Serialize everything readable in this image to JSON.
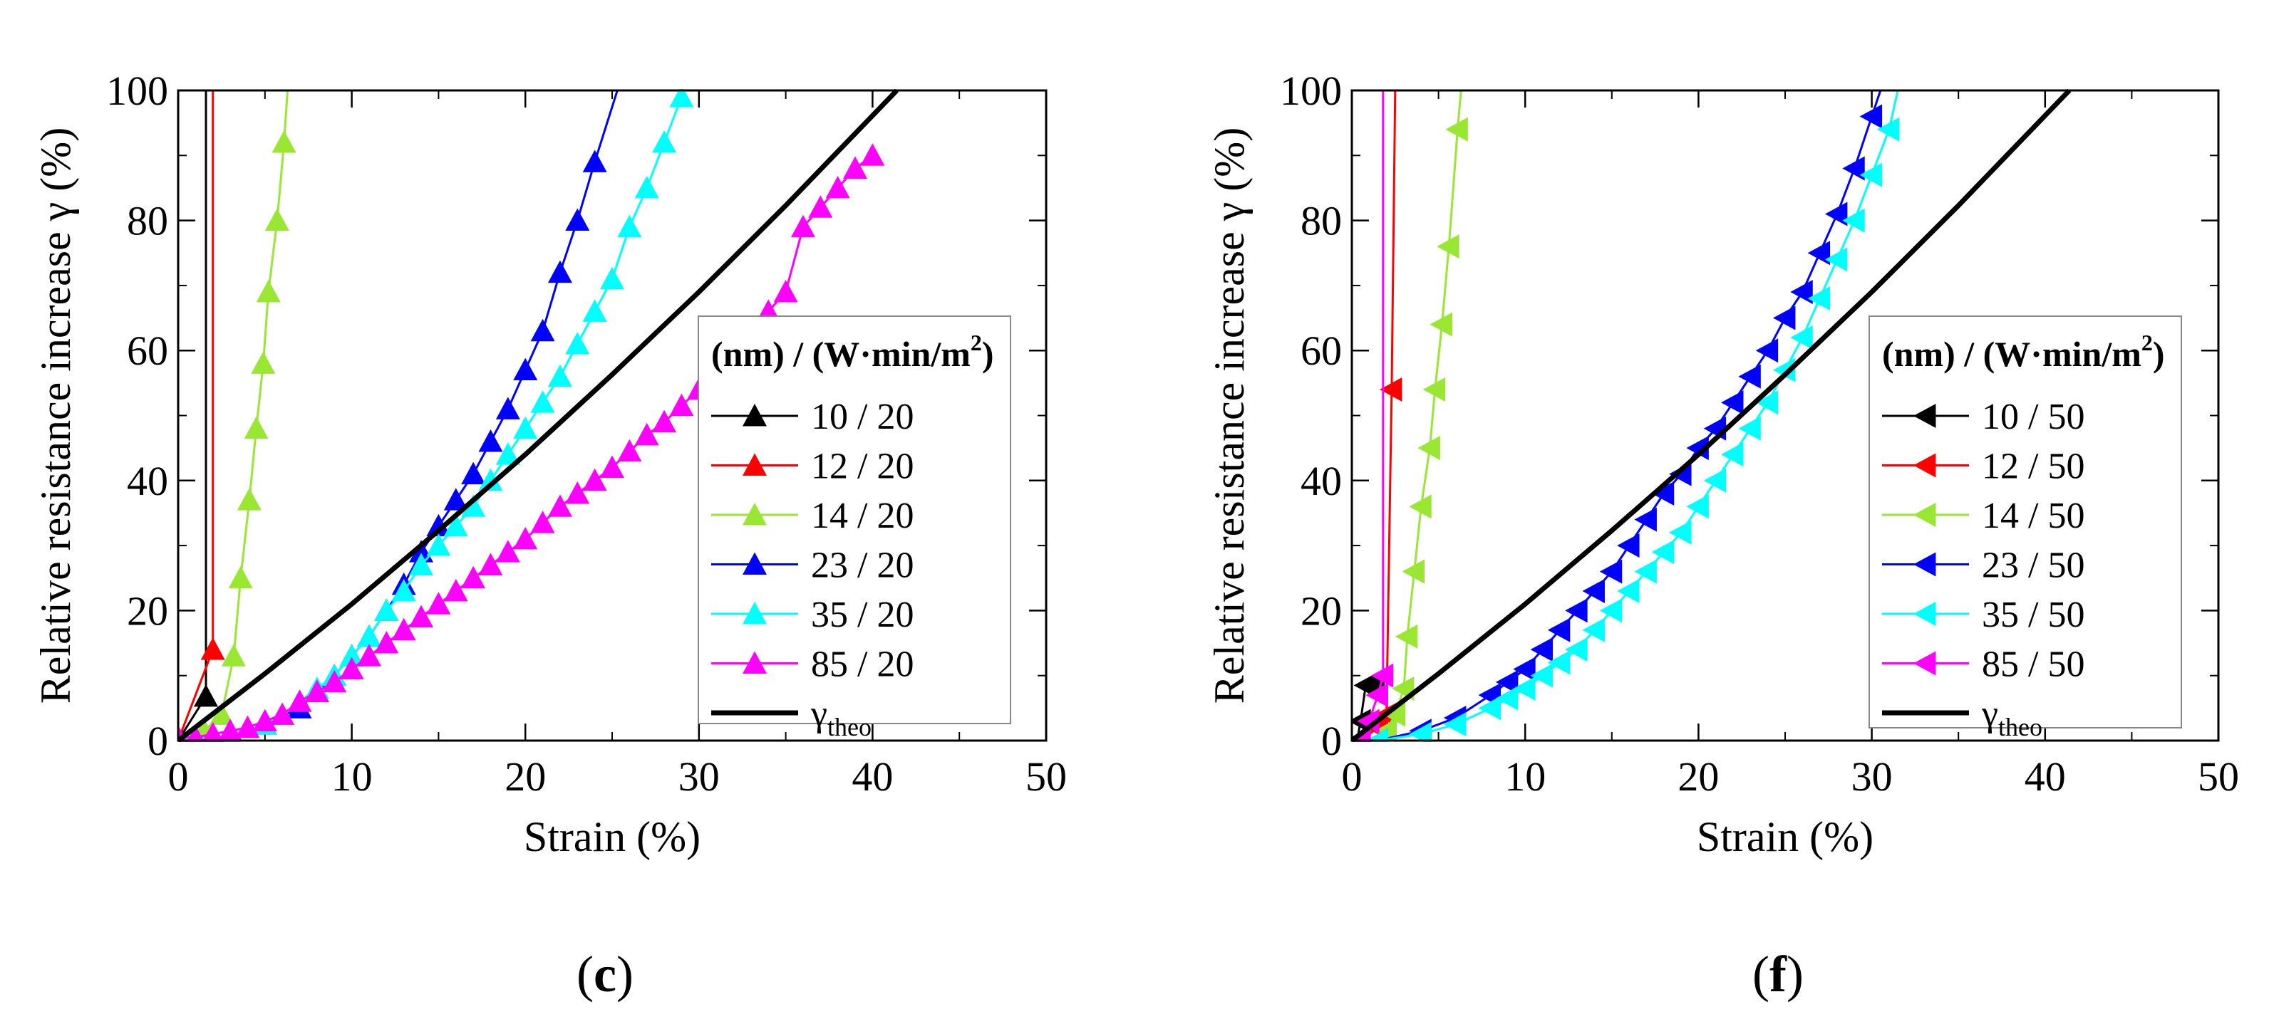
{
  "chart_data": [
    {
      "panel_label": "(c)",
      "label_letter": "c",
      "type": "line",
      "marker": "triangle-up",
      "xlabel": "Strain  (%)",
      "ylabel": "Relative resistance increase  γ (%)",
      "xlim": [
        0,
        50
      ],
      "ylim": [
        0,
        100
      ],
      "xticks": [
        0,
        10,
        20,
        30,
        40,
        50
      ],
      "yticks": [
        0,
        20,
        40,
        60,
        80,
        100
      ],
      "legend": {
        "title": "(nm) / (W·min/m²)",
        "title_base": "(nm) / (W·min/m",
        "title_sup": "2",
        "title_end": ")",
        "position": "center-right"
      },
      "series": [
        {
          "name": "10 / 20",
          "color": "#000000",
          "points": [
            [
              0,
              0
            ],
            [
              1.6,
              6.8
            ],
            [
              1.6,
              100
            ]
          ]
        },
        {
          "name": "12 / 20",
          "color": "#ff0000",
          "points": [
            [
              0,
              0
            ],
            [
              2.0,
              14
            ],
            [
              2.0,
              100
            ]
          ]
        },
        {
          "name": "14 / 20",
          "color": "#99e633",
          "points": [
            [
              0,
              0
            ],
            [
              1.5,
              1.5
            ],
            [
              2.5,
              4
            ],
            [
              3.2,
              13
            ],
            [
              3.6,
              25
            ],
            [
              4.1,
              37
            ],
            [
              4.5,
              48
            ],
            [
              4.9,
              58
            ],
            [
              5.2,
              69
            ],
            [
              5.7,
              80
            ],
            [
              6.1,
              92
            ],
            [
              6.3,
              100
            ]
          ]
        },
        {
          "name": "23 / 20",
          "color": "#0000ff",
          "points": [
            [
              0,
              0
            ],
            [
              3.0,
              0.8
            ],
            [
              5.0,
              2.5
            ],
            [
              7.0,
              5
            ],
            [
              8.0,
              7.5
            ],
            [
              9.0,
              10
            ],
            [
              10.0,
              13
            ],
            [
              11.0,
              16
            ],
            [
              12.0,
              20
            ],
            [
              13.0,
              24
            ],
            [
              14.0,
              29
            ],
            [
              15.0,
              33
            ],
            [
              16.0,
              37
            ],
            [
              17.0,
              41
            ],
            [
              18.0,
              46
            ],
            [
              19.0,
              51
            ],
            [
              20.0,
              57
            ],
            [
              21.0,
              63
            ],
            [
              22.0,
              72
            ],
            [
              23.0,
              80
            ],
            [
              24.0,
              89
            ],
            [
              25.3,
              100
            ]
          ]
        },
        {
          "name": "35 / 20",
          "color": "#00ffff",
          "points": [
            [
              0,
              0
            ],
            [
              3.0,
              0.8
            ],
            [
              5.0,
              2.5
            ],
            [
              6.0,
              4
            ],
            [
              7.0,
              6
            ],
            [
              8.0,
              8
            ],
            [
              9.0,
              10
            ],
            [
              10.0,
              13
            ],
            [
              11.0,
              16
            ],
            [
              12.0,
              20
            ],
            [
              13.0,
              23
            ],
            [
              14.0,
              27
            ],
            [
              15.0,
              30
            ],
            [
              16.0,
              33
            ],
            [
              17.0,
              36
            ],
            [
              18.0,
              40
            ],
            [
              19.0,
              44
            ],
            [
              20.0,
              48
            ],
            [
              21.0,
              52
            ],
            [
              22.0,
              56
            ],
            [
              23.0,
              61
            ],
            [
              24.0,
              66
            ],
            [
              25.0,
              71
            ],
            [
              26.0,
              79
            ],
            [
              27.0,
              85
            ],
            [
              28.0,
              92
            ],
            [
              29.0,
              99
            ]
          ]
        },
        {
          "name": "85 / 20",
          "color": "#ff00ff",
          "points": [
            [
              0,
              0.5
            ],
            [
              1,
              0.5
            ],
            [
              2,
              1
            ],
            [
              3,
              1.5
            ],
            [
              4,
              2
            ],
            [
              5,
              3
            ],
            [
              6,
              4
            ],
            [
              7,
              6
            ],
            [
              8,
              7.5
            ],
            [
              9,
              9
            ],
            [
              10,
              11
            ],
            [
              11,
              13
            ],
            [
              12,
              15
            ],
            [
              13,
              17
            ],
            [
              14,
              19
            ],
            [
              15,
              21
            ],
            [
              16,
              23
            ],
            [
              17,
              25
            ],
            [
              18,
              27
            ],
            [
              19,
              29
            ],
            [
              20,
              31
            ],
            [
              21,
              33.5
            ],
            [
              22,
              36
            ],
            [
              23,
              38
            ],
            [
              24,
              40
            ],
            [
              25,
              42
            ],
            [
              26,
              44.5
            ],
            [
              27,
              47
            ],
            [
              28,
              49
            ],
            [
              29,
              51.5
            ],
            [
              30,
              54
            ],
            [
              31,
              57
            ],
            [
              32,
              60
            ],
            [
              33,
              63
            ],
            [
              34,
              66
            ],
            [
              35,
              69
            ],
            [
              36,
              79
            ],
            [
              37,
              82
            ],
            [
              38,
              85
            ],
            [
              39,
              88
            ],
            [
              40,
              90
            ]
          ]
        },
        {
          "name": "γtheo",
          "label_base": "γ",
          "label_sub": "theo",
          "color": "#000000",
          "theo": true,
          "points": [
            [
              0,
              0
            ],
            [
              5,
              10.3
            ],
            [
              10,
              21.0
            ],
            [
              15,
              32.3
            ],
            [
              20,
              44.0
            ],
            [
              25,
              56.3
            ],
            [
              30,
              69.0
            ],
            [
              35,
              82.3
            ],
            [
              41.4,
              100
            ]
          ]
        }
      ]
    },
    {
      "panel_label": "(f)",
      "label_letter": "f",
      "type": "line",
      "marker": "triangle-left",
      "xlabel": "Strain  (%)",
      "ylabel": "Relative resistance increase  γ (%)",
      "xlim": [
        0,
        50
      ],
      "ylim": [
        0,
        100
      ],
      "xticks": [
        0,
        10,
        20,
        30,
        40,
        50
      ],
      "yticks": [
        0,
        20,
        40,
        60,
        80,
        100
      ],
      "legend": {
        "title": "(nm) / (W·min/m²)",
        "title_base": "(nm) / (W·min/m",
        "title_sup": "2",
        "title_end": ")",
        "position": "center-right"
      },
      "series": [
        {
          "name": "10 / 50",
          "color": "#000000",
          "points": [
            [
              0.3,
              0
            ],
            [
              0.5,
              3
            ],
            [
              0.8,
              8.5
            ],
            [
              1.3,
              8.5
            ]
          ]
        },
        {
          "name": "12 / 50",
          "color": "#ff0000",
          "points": [
            [
              0.5,
              0
            ],
            [
              1.5,
              2
            ],
            [
              2.0,
              4
            ],
            [
              2.3,
              54
            ],
            [
              2.5,
              100
            ]
          ]
        },
        {
          "name": "14 / 50",
          "color": "#99e633",
          "points": [
            [
              1.5,
              0
            ],
            [
              2.0,
              1.5
            ],
            [
              2.5,
              4
            ],
            [
              3.0,
              8
            ],
            [
              3.2,
              16
            ],
            [
              3.6,
              26
            ],
            [
              4.0,
              36
            ],
            [
              4.5,
              45
            ],
            [
              4.8,
              54
            ],
            [
              5.2,
              64
            ],
            [
              5.6,
              76
            ],
            [
              6.1,
              94
            ],
            [
              6.3,
              100
            ]
          ]
        },
        {
          "name": "23 / 50",
          "color": "#0000ff",
          "points": [
            [
              1.5,
              0
            ],
            [
              4,
              1.5
            ],
            [
              6,
              3.5
            ],
            [
              8,
              7
            ],
            [
              9,
              9
            ],
            [
              10,
              11
            ],
            [
              11,
              14
            ],
            [
              12,
              17
            ],
            [
              13,
              20
            ],
            [
              14,
              23
            ],
            [
              15,
              26
            ],
            [
              16,
              30
            ],
            [
              17,
              34
            ],
            [
              18,
              38
            ],
            [
              19,
              41
            ],
            [
              20,
              45
            ],
            [
              21,
              48
            ],
            [
              22,
              52
            ],
            [
              23,
              56
            ],
            [
              24,
              60
            ],
            [
              25,
              65
            ],
            [
              26,
              69
            ],
            [
              27,
              75
            ],
            [
              28,
              81
            ],
            [
              29,
              88
            ],
            [
              30,
              96
            ],
            [
              30.5,
              100
            ]
          ]
        },
        {
          "name": "35 / 50",
          "color": "#00ffff",
          "points": [
            [
              1.5,
              0
            ],
            [
              4,
              1
            ],
            [
              6,
              2.5
            ],
            [
              8,
              5
            ],
            [
              9,
              6.5
            ],
            [
              10,
              8
            ],
            [
              11,
              10
            ],
            [
              12,
              12
            ],
            [
              13,
              14
            ],
            [
              14,
              17
            ],
            [
              15,
              20
            ],
            [
              16,
              23
            ],
            [
              17,
              26
            ],
            [
              18,
              29
            ],
            [
              19,
              32
            ],
            [
              20,
              36
            ],
            [
              21,
              40
            ],
            [
              22,
              44
            ],
            [
              23,
              48
            ],
            [
              24,
              52
            ],
            [
              25,
              57
            ],
            [
              26,
              62
            ],
            [
              27,
              68
            ],
            [
              28,
              74
            ],
            [
              29,
              80
            ],
            [
              30,
              87
            ],
            [
              31,
              94
            ],
            [
              31.5,
              100
            ]
          ]
        },
        {
          "name": "85 / 50",
          "color": "#ff00ff",
          "points": [
            [
              0.5,
              0
            ],
            [
              1.0,
              3
            ],
            [
              1.5,
              7
            ],
            [
              1.8,
              10
            ],
            [
              1.8,
              100
            ]
          ]
        },
        {
          "name": "γtheo",
          "label_base": "γ",
          "label_sub": "theo",
          "color": "#000000",
          "theo": true,
          "points": [
            [
              0,
              0
            ],
            [
              5,
              10.3
            ],
            [
              10,
              21.0
            ],
            [
              15,
              32.3
            ],
            [
              20,
              44.0
            ],
            [
              25,
              56.3
            ],
            [
              30,
              69.0
            ],
            [
              35,
              82.3
            ],
            [
              41.4,
              100
            ]
          ]
        }
      ]
    }
  ]
}
